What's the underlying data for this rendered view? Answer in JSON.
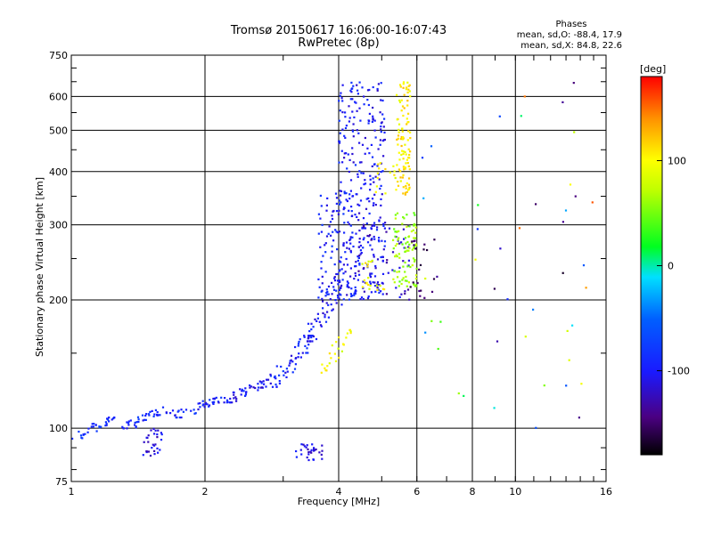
{
  "chart_data": {
    "type": "scatter",
    "title": "Tromsø 20150617 16:06:00-16:07:43",
    "subtitle": "RwPretec (8p)",
    "phases": {
      "heading": "Phases",
      "line_o": "mean, sd,O: -88.4, 17.9",
      "line_x": "mean, sd,X:  84.8, 22.6"
    },
    "xlabel": "Frequency [MHz]",
    "ylabel": "Stationary phase Virtual Height [km]",
    "x_scale": "log",
    "y_scale": "log",
    "xlim": [
      1,
      16
    ],
    "ylim": [
      75,
      750
    ],
    "x_ticks": [
      {
        "v": 1,
        "label": "1"
      },
      {
        "v": 2,
        "label": "2"
      },
      {
        "v": 4,
        "label": "4"
      },
      {
        "v": 6,
        "label": "6"
      },
      {
        "v": 8,
        "label": "8"
      },
      {
        "v": 10,
        "label": "10"
      },
      {
        "v": 16,
        "label": "16"
      }
    ],
    "x_gridlines": [
      2,
      4,
      6,
      8,
      10
    ],
    "y_ticks": [
      {
        "v": 75,
        "label": "75"
      },
      {
        "v": 100,
        "label": "100"
      },
      {
        "v": 200,
        "label": "200"
      },
      {
        "v": 300,
        "label": "300"
      },
      {
        "v": 400,
        "label": "400"
      },
      {
        "v": 500,
        "label": "500"
      },
      {
        "v": 600,
        "label": "600"
      },
      {
        "v": 750,
        "label": "750"
      }
    ],
    "y_gridlines": [
      100,
      200,
      300,
      400,
      500,
      600
    ],
    "grid": true,
    "colorbar": {
      "label": "[deg]",
      "range": [
        -180,
        180
      ],
      "ticks": [
        {
          "v": 100,
          "label": "100"
        },
        {
          "v": 0,
          "label": "0"
        },
        {
          "v": -100,
          "label": "-100"
        }
      ]
    },
    "point_groups": [
      {
        "phase": -85,
        "count": 35,
        "x_range": [
          1.0,
          1.25
        ],
        "y_range": [
          94,
          106
        ],
        "shape": "line"
      },
      {
        "phase": -90,
        "count": 40,
        "x_range": [
          1.3,
          1.7
        ],
        "y_range": [
          100,
          112
        ],
        "shape": "line"
      },
      {
        "phase": -95,
        "count": 40,
        "x_range": [
          1.7,
          2.2
        ],
        "y_range": [
          106,
          118
        ],
        "shape": "line"
      },
      {
        "phase": -100,
        "count": 45,
        "x_range": [
          2.2,
          2.8
        ],
        "y_range": [
          115,
          130
        ],
        "shape": "line"
      },
      {
        "phase": -95,
        "count": 55,
        "x_range": [
          2.8,
          3.5
        ],
        "y_range": [
          125,
          165
        ],
        "shape": "line"
      },
      {
        "phase": -100,
        "count": 60,
        "x_range": [
          3.4,
          4.1
        ],
        "y_range": [
          160,
          230
        ],
        "shape": "line"
      },
      {
        "phase": -110,
        "count": 30,
        "x_range": [
          1.45,
          1.6
        ],
        "y_range": [
          86,
          100
        ],
        "shape": "blob"
      },
      {
        "phase": -110,
        "count": 30,
        "x_range": [
          3.2,
          3.7
        ],
        "y_range": [
          84,
          92
        ],
        "shape": "blob"
      },
      {
        "phase": -100,
        "count": 320,
        "x_range": [
          4.0,
          5.1
        ],
        "y_range": [
          200,
          650
        ],
        "shape": "blob"
      },
      {
        "phase": -95,
        "count": 90,
        "x_range": [
          3.6,
          4.3
        ],
        "y_range": [
          195,
          360
        ],
        "shape": "blob"
      },
      {
        "phase": -120,
        "count": 50,
        "x_range": [
          4.4,
          5.8
        ],
        "y_range": [
          200,
          300
        ],
        "shape": "blob"
      },
      {
        "phase": 105,
        "count": 100,
        "x_range": [
          5.4,
          5.8
        ],
        "y_range": [
          350,
          650
        ],
        "shape": "blob"
      },
      {
        "phase": 60,
        "count": 90,
        "x_range": [
          5.3,
          6.0
        ],
        "y_range": [
          215,
          320
        ],
        "shape": "blob"
      },
      {
        "phase": 95,
        "count": 25,
        "x_range": [
          3.6,
          4.3
        ],
        "y_range": [
          135,
          170
        ],
        "shape": "line"
      },
      {
        "phase": 95,
        "count": 20,
        "x_range": [
          4.5,
          5.1
        ],
        "y_range": [
          210,
          250
        ],
        "shape": "blob"
      },
      {
        "phase": 100,
        "count": 15,
        "x_range": [
          4.8,
          5.4
        ],
        "y_range": [
          350,
          420
        ],
        "shape": "blob"
      },
      {
        "phase": -150,
        "count": 20,
        "x_range": [
          5.8,
          6.7
        ],
        "y_range": [
          200,
          280
        ],
        "shape": "blob"
      },
      {
        "phase": 0,
        "count": 45,
        "x_range": [
          6.0,
          15.0
        ],
        "y_range": [
          85,
          650
        ],
        "shape": "blob"
      }
    ]
  }
}
